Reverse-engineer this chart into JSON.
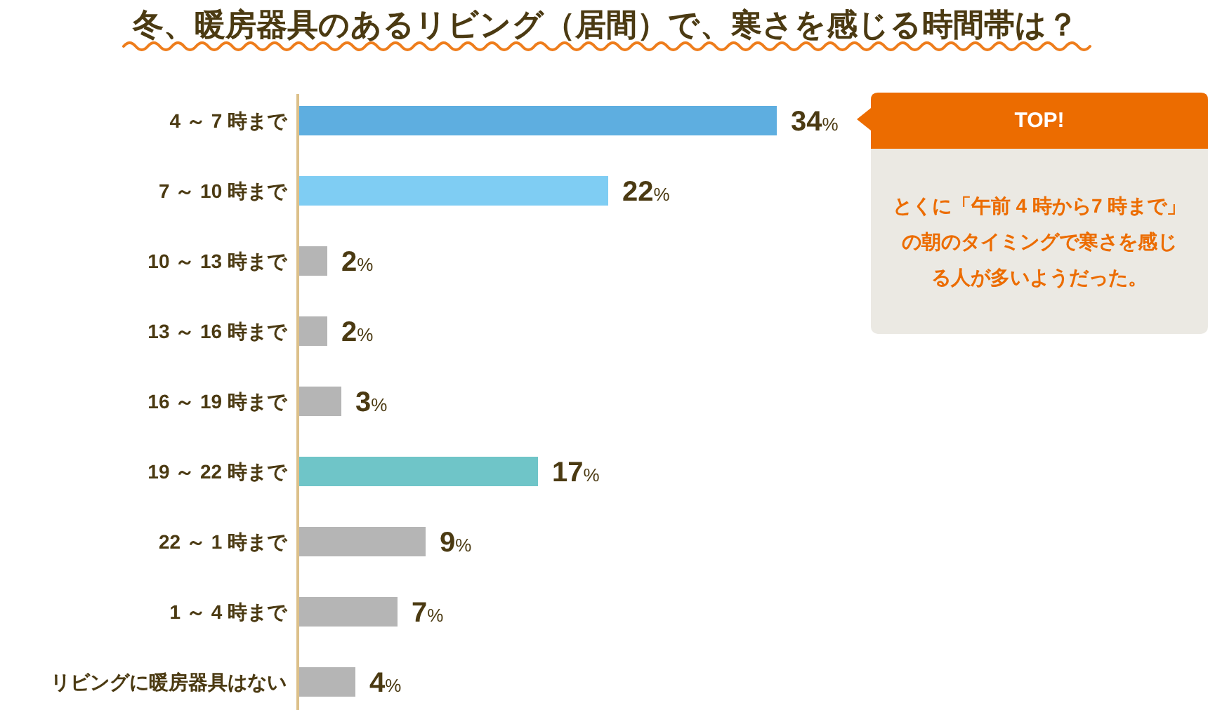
{
  "chart_data": {
    "type": "bar",
    "orientation": "horizontal",
    "title": "冬、暖房器具のあるリビング（居間）で、寒さを感じる時間帯は？",
    "categories": [
      "4 ～ 7 時まで",
      "7 ～ 10 時まで",
      "10 ～ 13 時まで",
      "13 ～ 16 時まで",
      "16 ～ 19 時まで",
      "19 ～ 22 時まで",
      "22 ～ 1 時まで",
      "1 ～ 4 時まで",
      "リビングに暖房器具はない"
    ],
    "values": [
      34,
      22,
      2,
      2,
      3,
      17,
      9,
      7,
      4
    ],
    "colors": [
      "#5eaee0",
      "#7fcdf3",
      "#b5b5b5",
      "#b5b5b5",
      "#b5b5b5",
      "#6fc5c8",
      "#b5b5b5",
      "#b5b5b5",
      "#b5b5b5"
    ],
    "value_labels": [
      "34%",
      "22%",
      "2%",
      "2%",
      "3%",
      "17%",
      "9%",
      "7%",
      "4%"
    ],
    "annotations": [
      "TOP!",
      "とくに「午前 4 時から7 時まで」の朝のタイミングで寒さを感じる人が多いようだった。"
    ]
  }
}
